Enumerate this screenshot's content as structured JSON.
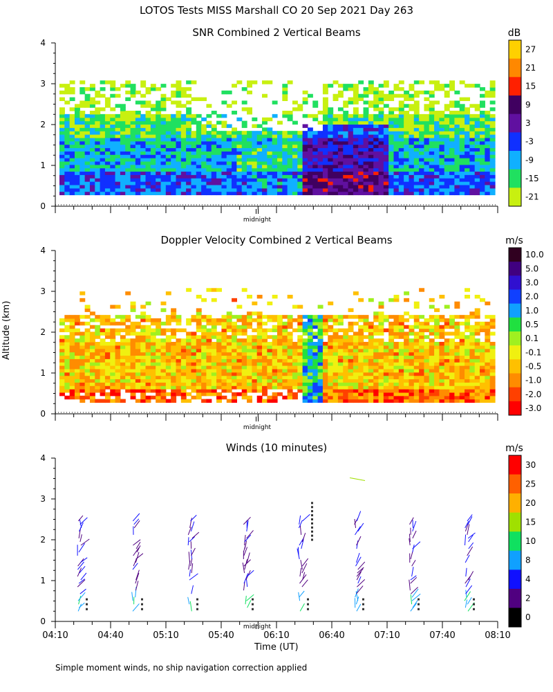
{
  "title": "LOTOS Tests MISS Marshall CO  20 Sep 2021 Day 263",
  "y_axis_label": "Altitude (km)",
  "x_axis_label": "Time (UT)",
  "footnote": "Simple moment winds, no ship navigation correction applied",
  "midnight_label": "midnight",
  "x_ticks": [
    "04:10",
    "04:40",
    "05:10",
    "05:40",
    "06:10",
    "06:40",
    "07:10",
    "07:40",
    "08:10"
  ],
  "y_ticks": [
    "0",
    "1",
    "2",
    "3",
    "4"
  ],
  "colors": {
    "axis": "#000000"
  },
  "chart_data": [
    {
      "type": "heatmap",
      "title": "SNR Combined 2 Vertical Beams",
      "units": "dB",
      "xlabel": "Time (UT)",
      "ylabel": "Altitude (km)",
      "ylim": [
        0,
        4
      ],
      "x_range": [
        "04:10",
        "08:10"
      ],
      "colorbar_labels": [
        "27",
        "21",
        "15",
        "9",
        "3",
        "-3",
        "-9",
        "-15",
        "-21"
      ],
      "colorbar_colors": [
        "#ffd000",
        "#ff8800",
        "#ff2000",
        "#400060",
        "#6010a0",
        "#1030ff",
        "#10b0ff",
        "#20e060",
        "#c8f010"
      ]
    },
    {
      "type": "heatmap",
      "title": "Doppler Velocity Combined 2 Vertical Beams",
      "units": "m/s",
      "xlabel": "Time (UT)",
      "ylabel": "Altitude (km)",
      "ylim": [
        0,
        4
      ],
      "x_range": [
        "04:10",
        "08:10"
      ],
      "colorbar_labels": [
        "10.0",
        "5.0",
        "3.0",
        "2.0",
        "1.0",
        "0.5",
        "0.1",
        "-0.1",
        "-0.5",
        "-1.0",
        "-2.0",
        "-3.0"
      ],
      "colorbar_colors": [
        "#300020",
        "#400080",
        "#3010d0",
        "#1040ff",
        "#10a0ff",
        "#20e040",
        "#a0f020",
        "#f0f010",
        "#ffc000",
        "#ff8c00",
        "#ff4000",
        "#ff0000"
      ]
    },
    {
      "type": "scatter",
      "title": "Winds (10 minutes)",
      "units": "m/s",
      "xlabel": "Time (UT)",
      "ylabel": "Altitude (km)",
      "ylim": [
        0,
        4
      ],
      "x_range": [
        "04:10",
        "08:10"
      ],
      "colorbar_labels": [
        "30",
        "25",
        "20",
        "15",
        "10",
        "8",
        "4",
        "2",
        "0"
      ],
      "colorbar_colors": [
        "#ff0000",
        "#ff6000",
        "#ffb000",
        "#a0e000",
        "#10e060",
        "#10a0ff",
        "#1010ff",
        "#500080",
        "#000000"
      ],
      "profile_times": [
        "04:25",
        "04:55",
        "05:25",
        "05:55",
        "06:25",
        "06:55",
        "07:25",
        "07:55"
      ],
      "note": "wind barbs at 10-minute profiles, mostly 2-8 m/s; sparse barbs to ~2.5 km, isolated at ~3.4 km near 06:55"
    }
  ]
}
